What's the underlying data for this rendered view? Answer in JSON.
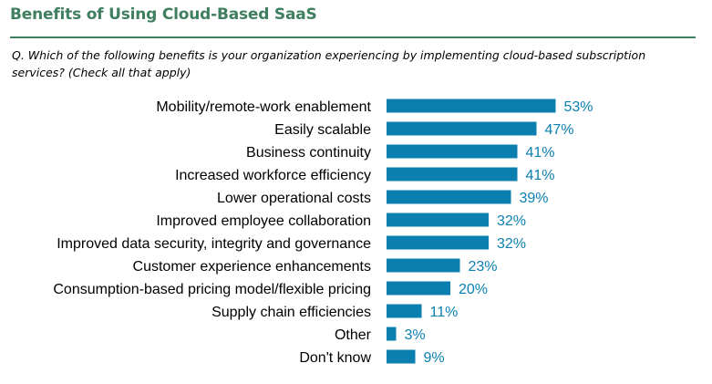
{
  "header": {
    "title": "Benefits of Using Cloud-Based SaaS",
    "question": "Q. Which of the following benefits is your organization experiencing by implementing cloud-based subscription services? (Check all that apply)"
  },
  "colors": {
    "title": "#3f7f5f",
    "rule": "#3f7f5f",
    "bar": "#0b7fb0",
    "value_label": "#0b7fb0"
  },
  "chart_data": {
    "type": "bar",
    "orientation": "horizontal",
    "categories": [
      "Mobility/remote-work enablement",
      "Easily scalable",
      "Business continuity",
      "Increased workforce efficiency",
      "Lower operational costs",
      "Improved employee collaboration",
      "Improved data security, integrity and governance",
      "Customer experience enhancements",
      "Consumption-based pricing model/flexible pricing",
      "Supply chain efficiencies",
      "Other",
      "Don't know"
    ],
    "values": [
      53,
      47,
      41,
      41,
      39,
      32,
      32,
      23,
      20,
      11,
      3,
      9
    ],
    "value_labels": [
      "53%",
      "47%",
      "41%",
      "41%",
      "39%",
      "32%",
      "32%",
      "23%",
      "20%",
      "11%",
      "3%",
      "9%"
    ],
    "unit": "%",
    "xlim": [
      0,
      100
    ],
    "grid": false,
    "legend": "none"
  }
}
